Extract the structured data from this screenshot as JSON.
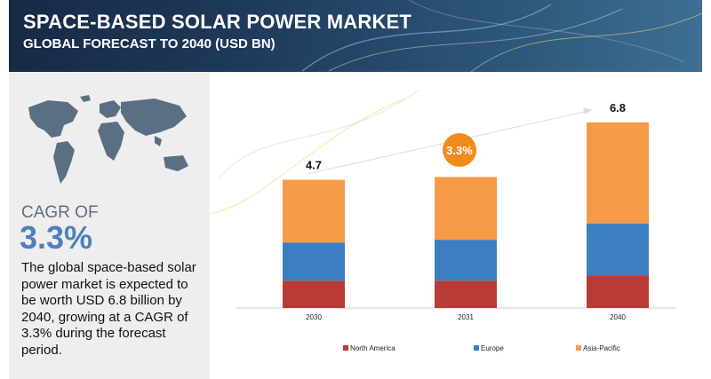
{
  "header": {
    "title": "SPACE-BASED SOLAR POWER MARKET",
    "subtitle": "GLOBAL FORECAST TO 2040 (USD BN)"
  },
  "left_panel": {
    "cagr_label": "CAGR OF",
    "cagr_value": "3.3%",
    "summary": "The global space-based solar power market is expected to be worth USD 6.8 billion by 2040, growing at a CAGR of 3.3% during the forecast period."
  },
  "colors": {
    "north_america": "#b83b35",
    "europe": "#3b7ec1",
    "asia_pacific": "#f79a48",
    "cagr_bubble": "#f28a1e",
    "header_bg": "#1f3a5c"
  },
  "chart_data": {
    "type": "bar",
    "stacked": true,
    "categories": [
      "2030",
      "2031",
      "2040"
    ],
    "series": [
      {
        "name": "North America",
        "values": [
          1.0,
          1.0,
          1.2
        ]
      },
      {
        "name": "Europe",
        "values": [
          1.4,
          1.5,
          1.9
        ]
      },
      {
        "name": "Asia-Pacific",
        "values": [
          2.3,
          2.3,
          3.7
        ]
      }
    ],
    "totals": [
      "4.7",
      "",
      "6.8"
    ],
    "annotation": "3.3%",
    "ylim": [
      0,
      8
    ],
    "legend_position": "bottom",
    "grid": false
  }
}
